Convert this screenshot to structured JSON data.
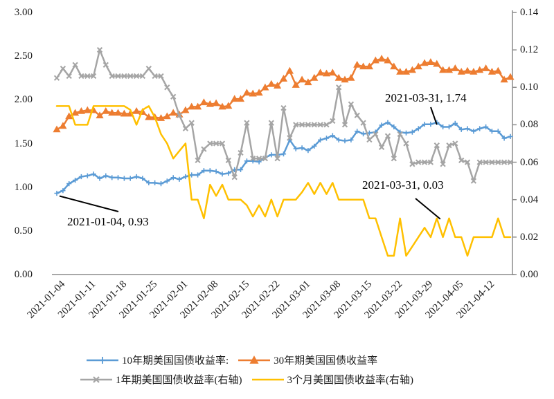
{
  "chart_data": {
    "type": "line",
    "title": "",
    "legend_position": "bottom",
    "grid": false,
    "x_tick_labels": [
      "2021-01-04",
      "2021-01-11",
      "2021-01-18",
      "2021-01-25",
      "2021-02-01",
      "2021-02-08",
      "2021-02-15",
      "2021-02-22",
      "2021-03-01",
      "2021-03-08",
      "2021-03-15",
      "2021-03-22",
      "2021-03-29",
      "2021-04-05",
      "2021-04-12"
    ],
    "dates": [
      "2021-01-04",
      "2021-01-05",
      "2021-01-06",
      "2021-01-07",
      "2021-01-08",
      "2021-01-11",
      "2021-01-12",
      "2021-01-13",
      "2021-01-14",
      "2021-01-15",
      "2021-01-18",
      "2021-01-19",
      "2021-01-20",
      "2021-01-21",
      "2021-01-22",
      "2021-01-25",
      "2021-01-26",
      "2021-01-27",
      "2021-01-28",
      "2021-01-29",
      "2021-02-01",
      "2021-02-02",
      "2021-02-03",
      "2021-02-04",
      "2021-02-05",
      "2021-02-08",
      "2021-02-09",
      "2021-02-10",
      "2021-02-11",
      "2021-02-12",
      "2021-02-15",
      "2021-02-16",
      "2021-02-17",
      "2021-02-18",
      "2021-02-19",
      "2021-02-22",
      "2021-02-23",
      "2021-02-24",
      "2021-02-25",
      "2021-02-26",
      "2021-03-01",
      "2021-03-02",
      "2021-03-03",
      "2021-03-04",
      "2021-03-05",
      "2021-03-08",
      "2021-03-09",
      "2021-03-10",
      "2021-03-11",
      "2021-03-12",
      "2021-03-15",
      "2021-03-16",
      "2021-03-17",
      "2021-03-18",
      "2021-03-19",
      "2021-03-22",
      "2021-03-23",
      "2021-03-24",
      "2021-03-25",
      "2021-03-26",
      "2021-03-29",
      "2021-03-30",
      "2021-03-31",
      "2021-04-01",
      "2021-04-02",
      "2021-04-05",
      "2021-04-06",
      "2021-04-07",
      "2021-04-08",
      "2021-04-09",
      "2021-04-12",
      "2021-04-13",
      "2021-04-14",
      "2021-04-15",
      "2021-04-16"
    ],
    "left_axis": {
      "min": 0,
      "max": 3.0,
      "step": 0.5,
      "tick_labels": [
        "3.00",
        "2.50",
        "2.00",
        "1.50",
        "1.00",
        "0.50",
        "0.00"
      ]
    },
    "right_axis": {
      "min": 0,
      "max": 0.14,
      "step": 0.02,
      "tick_labels": [
        "0.14",
        "0.12",
        "0.10",
        "0.08",
        "0.06",
        "0.04",
        "0.02",
        "0.00"
      ]
    },
    "axis_color": "#8c8c8c",
    "series": [
      {
        "name": "10年期美国国债收益率:",
        "axis": "left",
        "color": "#5B9BD5",
        "marker": "plus",
        "values": [
          0.93,
          0.96,
          1.04,
          1.08,
          1.12,
          1.13,
          1.15,
          1.1,
          1.13,
          1.11,
          1.11,
          1.1,
          1.1,
          1.12,
          1.1,
          1.05,
          1.05,
          1.04,
          1.07,
          1.11,
          1.09,
          1.12,
          1.14,
          1.14,
          1.19,
          1.19,
          1.18,
          1.15,
          1.16,
          1.2,
          1.2,
          1.3,
          1.3,
          1.29,
          1.34,
          1.37,
          1.37,
          1.38,
          1.54,
          1.44,
          1.45,
          1.42,
          1.47,
          1.54,
          1.56,
          1.59,
          1.54,
          1.53,
          1.54,
          1.64,
          1.61,
          1.62,
          1.63,
          1.71,
          1.74,
          1.69,
          1.63,
          1.62,
          1.63,
          1.67,
          1.72,
          1.72,
          1.74,
          1.69,
          1.69,
          1.73,
          1.66,
          1.67,
          1.64,
          1.67,
          1.69,
          1.64,
          1.64,
          1.56,
          1.58
        ]
      },
      {
        "name": "30年期美国国债收益率",
        "axis": "left",
        "color": "#ED7D31",
        "marker": "triangle",
        "values": [
          1.66,
          1.7,
          1.81,
          1.85,
          1.87,
          1.88,
          1.88,
          1.82,
          1.87,
          1.85,
          1.85,
          1.84,
          1.84,
          1.87,
          1.86,
          1.8,
          1.8,
          1.79,
          1.81,
          1.85,
          1.83,
          1.88,
          1.92,
          1.92,
          1.97,
          1.95,
          1.96,
          1.92,
          1.93,
          2.01,
          2.01,
          2.08,
          2.07,
          2.08,
          2.14,
          2.18,
          2.16,
          2.24,
          2.33,
          2.17,
          2.23,
          2.2,
          2.25,
          2.31,
          2.3,
          2.31,
          2.25,
          2.23,
          2.25,
          2.4,
          2.38,
          2.38,
          2.45,
          2.47,
          2.45,
          2.38,
          2.32,
          2.32,
          2.34,
          2.38,
          2.42,
          2.43,
          2.41,
          2.34,
          2.34,
          2.36,
          2.32,
          2.33,
          2.32,
          2.34,
          2.36,
          2.32,
          2.33,
          2.23,
          2.26
        ]
      },
      {
        "name": "1年期美国国债收益率(右轴)",
        "axis": "right",
        "color": "#A5A5A5",
        "marker": "x",
        "values": [
          0.105,
          0.11,
          0.106,
          0.112,
          0.106,
          0.106,
          0.106,
          0.12,
          0.112,
          0.106,
          0.106,
          0.106,
          0.106,
          0.106,
          0.106,
          0.11,
          0.106,
          0.106,
          0.1,
          0.095,
          0.085,
          0.078,
          0.081,
          0.061,
          0.067,
          0.07,
          0.07,
          0.07,
          0.061,
          0.052,
          0.065,
          0.081,
          0.062,
          0.062,
          0.062,
          0.081,
          0.062,
          0.089,
          0.073,
          0.08,
          0.08,
          0.08,
          0.08,
          0.08,
          0.08,
          0.082,
          0.1,
          0.08,
          0.091,
          0.085,
          0.081,
          0.072,
          0.075,
          0.068,
          0.074,
          0.062,
          0.075,
          0.07,
          0.059,
          0.06,
          0.06,
          0.06,
          0.069,
          0.059,
          0.069,
          0.07,
          0.061,
          0.06,
          0.05,
          0.06,
          0.06,
          0.06,
          0.06,
          0.06,
          0.06
        ]
      },
      {
        "name": "3个月美国国债收益率(右轴)",
        "axis": "right",
        "color": "#FFC000",
        "marker": "none",
        "values": [
          0.09,
          0.09,
          0.09,
          0.08,
          0.08,
          0.08,
          0.09,
          0.09,
          0.09,
          0.09,
          0.09,
          0.09,
          0.088,
          0.08,
          0.088,
          0.09,
          0.084,
          0.075,
          0.07,
          0.062,
          0.066,
          0.07,
          0.04,
          0.04,
          0.03,
          0.048,
          0.042,
          0.048,
          0.04,
          0.04,
          0.04,
          0.037,
          0.031,
          0.037,
          0.031,
          0.04,
          0.031,
          0.04,
          0.04,
          0.04,
          0.044,
          0.049,
          0.043,
          0.049,
          0.043,
          0.049,
          0.04,
          0.04,
          0.04,
          0.04,
          0.04,
          0.03,
          0.03,
          0.02,
          0.01,
          0.01,
          0.03,
          0.01,
          0.015,
          0.02,
          0.025,
          0.02,
          0.03,
          0.02,
          0.03,
          0.02,
          0.02,
          0.01,
          0.02,
          0.02,
          0.02,
          0.02,
          0.03,
          0.02,
          0.02
        ]
      }
    ],
    "annotations": [
      {
        "label": "2021-03-31, 1.74",
        "date": "2021-03-31",
        "series_index": 0,
        "value": 1.74
      },
      {
        "label": "2021-01-04, 0.93",
        "date": "2021-01-04",
        "series_index": 0,
        "value": 0.93
      },
      {
        "label": "2021-03-31, 0.03",
        "date": "2021-03-31",
        "series_index": 3,
        "value": 0.03
      }
    ]
  }
}
